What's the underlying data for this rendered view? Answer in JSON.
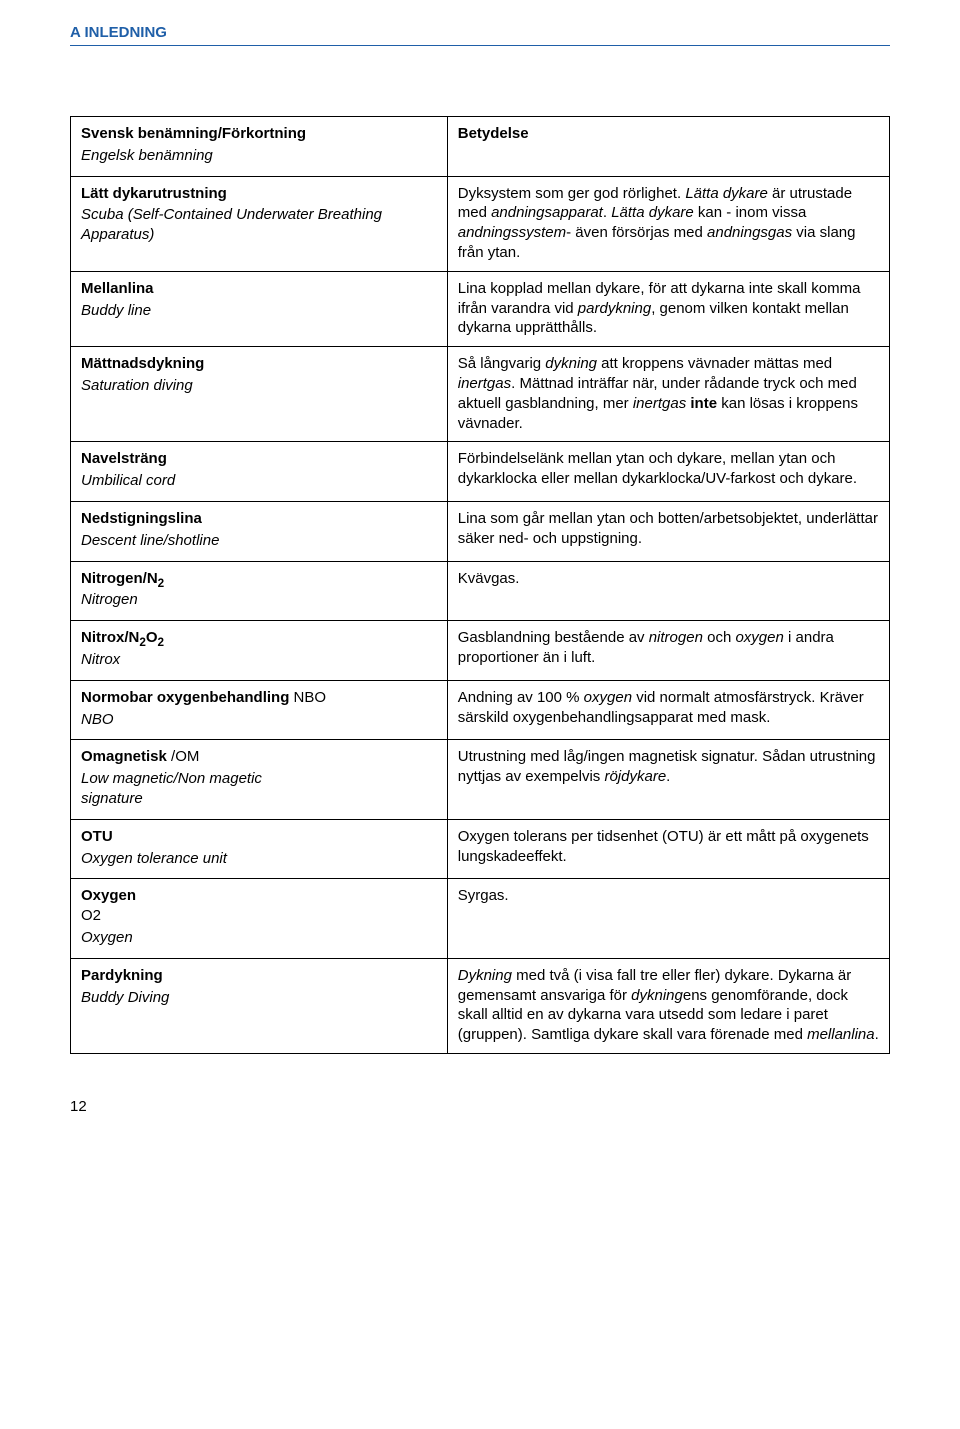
{
  "header": "A INLEDNING",
  "table": {
    "col1_header_sv": "Svensk benämning/Förkortning",
    "col1_header_en": "Engelsk benämning",
    "col2_header": "Betydelse",
    "rows": [
      {
        "sv": "Lätt dykarutrustning",
        "en_html": "Scuba (Self-Contained Underwater Breathing Apparatus)",
        "def_html": "Dyksystem som ger god rörlighet. <i>Lätta dykare</i> är utrustade med <i>andningsapparat</i>. <i>Lätta dykare</i> kan - inom vissa <i>andningssystem</i>- även försörjas med <i>andningsgas</i> via slang från ytan."
      },
      {
        "sv": "Mellanlina",
        "en_html": "Buddy line",
        "def_html": "Lina kopplad mellan dykare, för att dykarna inte skall komma ifrån varandra vid <i>pardykning</i>, genom vilken kontakt mellan dykarna upprätthålls."
      },
      {
        "sv": "Mättnadsdykning",
        "en_html": "Saturation diving",
        "def_html": "Så långvarig <i>dykning</i> att kroppens vävnader mättas med <i>inertgas</i>. Mättnad inträffar när, under rådande tryck och med aktuell gasblandning, mer <i>inertgas</i> <b>inte</b> kan lösas i kroppens vävnader."
      },
      {
        "sv": "Navelsträng",
        "en_html": "Umbilical cord",
        "def_html": "Förbindelselänk mellan ytan och dykare, mellan ytan och dykarklocka eller mellan dykarklocka/UV-farkost och dykare."
      },
      {
        "sv": "Nedstigningslina",
        "en_html": "Descent line/shotline",
        "def_html": "Lina som går mellan ytan och botten/arbetsobjektet, underlättar säker ned- och uppstigning."
      },
      {
        "sv_html": "Nitrogen/N<span class=\"sub\">2</span>",
        "en_html": "Nitrogen",
        "def_html": "Kvävgas."
      },
      {
        "sv_html": "Nitrox/N<span class=\"sub\">2</span>O<span class=\"sub\">2</span>",
        "en_html": "Nitrox",
        "def_html": "Gasblandning bestående av <i>nitrogen</i> och <i>oxygen</i> i andra proportioner än i luft."
      },
      {
        "sv_html": "Normobar oxygenbehandling <span class=\"term-abbr\">NBO</span>",
        "en_html": "NBO",
        "def_html": "Andning av 100 % <i>oxygen</i> vid normalt atmosfärstryck. Kräver särskild oxygenbehandlingsapparat med mask."
      },
      {
        "sv_html": "Omagnetisk <span class=\"term-abbr\">/OM</span>",
        "en_html": "Low magnetic/Non magetic<br>signature",
        "def_html": "Utrustning med låg/ingen magnetisk signatur. Sådan utrustning nyttjas av exempelvis <i>röjdykare</i>."
      },
      {
        "sv": "OTU",
        "en_html": "Oxygen tolerance unit",
        "def_html": "Oxygen tolerans per tidsenhet (OTU) är ett mått på oxygenets lungskadeeffekt."
      },
      {
        "sv_html": "Oxygen<br><span class=\"term-abbr\">O2</span>",
        "en_html": "Oxygen",
        "def_html": "Syrgas."
      },
      {
        "sv": "Pardykning",
        "en_html": "Buddy Diving",
        "def_html": "<i>Dykning</i> med två (i visa fall tre eller fler) dykare. Dykarna är gemensamt ansvariga för <i>dykning</i>ens genomförande, dock skall alltid en av dykarna vara utsedd som ledare i paret (gruppen). Samtliga dykare skall vara förenade med <i>mellanlina</i>."
      }
    ]
  },
  "page_number": "12"
}
